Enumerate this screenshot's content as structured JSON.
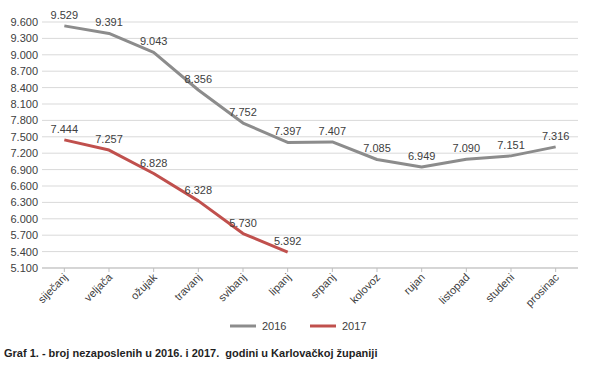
{
  "chart_data": {
    "type": "line",
    "title": "Graf 1. - broj nezaposlenih u 2016. i 2017.  godini u Karlovačkoj županiji",
    "categories": [
      "siječanj",
      "veljača",
      "ožujak",
      "travanj",
      "svibanj",
      "lipanj",
      "srpanj",
      "kolovoz",
      "rujan",
      "listopad",
      "studeni",
      "prosinac"
    ],
    "series": [
      {
        "name": "2016",
        "color": "#8c8c8c",
        "values": [
          9529,
          9391,
          9043,
          8356,
          7752,
          7397,
          7407,
          7085,
          6949,
          7090,
          7151,
          7316
        ],
        "value_labels": [
          "9.529",
          "9.391",
          "9.043",
          "8.356",
          "7.752",
          "7.397",
          "7.407",
          "7.085",
          "6.949",
          "7.090",
          "7.151",
          "7.316"
        ]
      },
      {
        "name": "2017",
        "color": "#c0504d",
        "values": [
          7444,
          7257,
          6828,
          6328,
          5730,
          5392,
          null,
          null,
          null,
          null,
          null,
          null
        ],
        "value_labels": [
          "7.444",
          "7.257",
          "6.828",
          "6.328",
          "5.730",
          "5.392",
          null,
          null,
          null,
          null,
          null,
          null
        ]
      }
    ],
    "ylim": [
      5100,
      9600
    ],
    "yticks": [
      {
        "value": 5100,
        "label": "5.100"
      },
      {
        "value": 5400,
        "label": "5.400"
      },
      {
        "value": 5700,
        "label": "5.700"
      },
      {
        "value": 6000,
        "label": "6.000"
      },
      {
        "value": 6300,
        "label": "6.300"
      },
      {
        "value": 6600,
        "label": "6.600"
      },
      {
        "value": 6900,
        "label": "6.900"
      },
      {
        "value": 7200,
        "label": "7.200"
      },
      {
        "value": 7500,
        "label": "7.500"
      },
      {
        "value": 7800,
        "label": "7.800"
      },
      {
        "value": 8100,
        "label": "8.100"
      },
      {
        "value": 8400,
        "label": "8.400"
      },
      {
        "value": 8700,
        "label": "8.700"
      },
      {
        "value": 9000,
        "label": "9.000"
      },
      {
        "value": 9300,
        "label": "9.300"
      },
      {
        "value": 9600,
        "label": "9.600"
      }
    ],
    "grid": true,
    "legend": "bottom",
    "data_labels": true
  }
}
